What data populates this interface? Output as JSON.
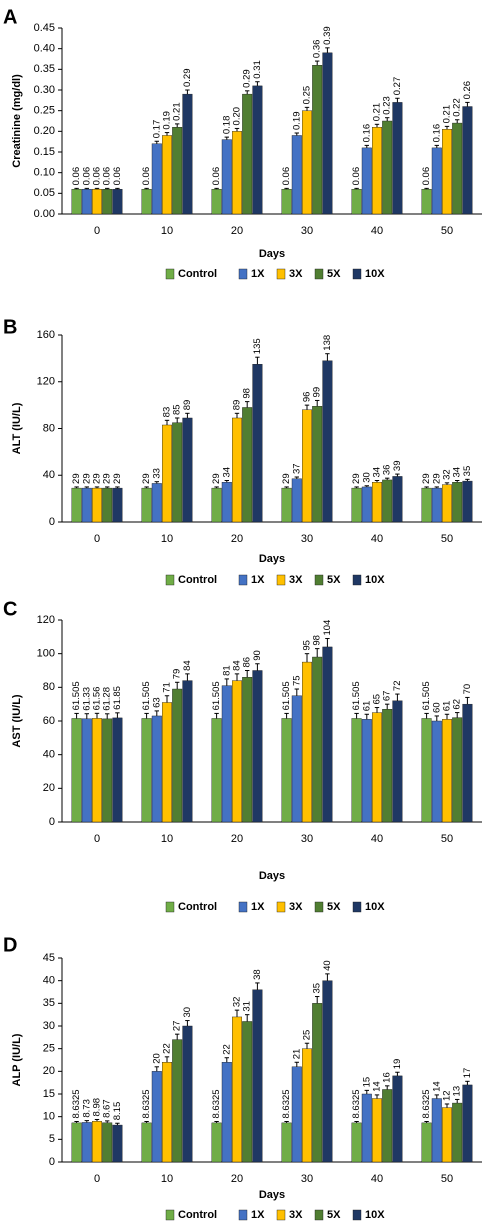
{
  "chart_data": [
    {
      "panel": "A",
      "type": "bar",
      "xlabel": "Days",
      "ylabel": "Creatinine (mg/dl)",
      "categories": [
        "0",
        "10",
        "20",
        "30",
        "40",
        "50"
      ],
      "ylim": [
        0,
        0.45
      ],
      "yticks": [
        "0.00",
        "0.05",
        "0.10",
        "0.15",
        "0.20",
        "0.25",
        "0.30",
        "0.35",
        "0.40",
        "0.45"
      ],
      "grid": false,
      "legend": "bottom",
      "series": [
        {
          "name": "Control",
          "color": "#70ad47",
          "values": [
            0.06,
            0.06,
            0.06,
            0.06,
            0.06,
            0.06
          ],
          "labels": [
            "0.06",
            "0.06",
            "0.06",
            "0.06",
            "0.06",
            "0.06"
          ],
          "errors": [
            0.002,
            0.002,
            0.002,
            0.002,
            0.002,
            0.002
          ]
        },
        {
          "name": "1X",
          "color": "#4472c4",
          "values": [
            0.06,
            0.17,
            0.18,
            0.19,
            0.16,
            0.16
          ],
          "labels": [
            "0.06",
            "0.17",
            "0.18",
            "0.19",
            "0.16",
            "0.16"
          ],
          "errors": [
            0.002,
            0.006,
            0.006,
            0.006,
            0.006,
            0.006
          ]
        },
        {
          "name": "3X",
          "color": "#ffc000",
          "values": [
            0.06,
            0.19,
            0.2,
            0.25,
            0.21,
            0.205
          ],
          "labels": [
            "0.06",
            "0.19",
            "0.20",
            "0.25",
            "0.21",
            "0.21"
          ],
          "errors": [
            0.002,
            0.007,
            0.007,
            0.008,
            0.007,
            0.007
          ]
        },
        {
          "name": "5X",
          "color": "#507e32",
          "values": [
            0.06,
            0.21,
            0.29,
            0.36,
            0.225,
            0.22
          ],
          "labels": [
            "0.06",
            "0.21",
            "0.29",
            "0.36",
            "0.23",
            "0.22"
          ],
          "errors": [
            0.002,
            0.008,
            0.008,
            0.01,
            0.008,
            0.008
          ]
        },
        {
          "name": "10X",
          "color": "#1f3864",
          "values": [
            0.06,
            0.29,
            0.31,
            0.39,
            0.27,
            0.26
          ],
          "labels": [
            "0.06",
            "0.29",
            "0.31",
            "0.39",
            "0.27",
            "0.26"
          ],
          "errors": [
            0.002,
            0.01,
            0.01,
            0.012,
            0.01,
            0.01
          ]
        }
      ]
    },
    {
      "panel": "B",
      "type": "bar",
      "xlabel": "Days",
      "ylabel": "ALT (IU/L)",
      "categories": [
        "0",
        "10",
        "20",
        "30",
        "40",
        "50"
      ],
      "ylim": [
        0,
        160
      ],
      "yticks": [
        "0",
        "40",
        "80",
        "120",
        "160"
      ],
      "grid": false,
      "legend": "bottom",
      "series": [
        {
          "name": "Control",
          "color": "#70ad47",
          "values": [
            29,
            29,
            29,
            29,
            29,
            29
          ],
          "labels": [
            "29",
            "29",
            "29",
            "29",
            "29",
            "29"
          ],
          "errors": [
            1,
            1,
            1,
            1,
            1,
            1
          ]
        },
        {
          "name": "1X",
          "color": "#4472c4",
          "values": [
            29,
            33,
            34,
            37,
            30,
            29
          ],
          "labels": [
            "29",
            "33",
            "34",
            "37",
            "30",
            "29"
          ],
          "errors": [
            1,
            1.5,
            1.5,
            1.5,
            1,
            1
          ]
        },
        {
          "name": "3X",
          "color": "#ffc000",
          "values": [
            29,
            83,
            89,
            96,
            34,
            32
          ],
          "labels": [
            "29",
            "83",
            "89",
            "96",
            "34",
            "32"
          ],
          "errors": [
            1,
            4,
            4,
            4,
            1.5,
            1.5
          ]
        },
        {
          "name": "5X",
          "color": "#507e32",
          "values": [
            29,
            85,
            98,
            99,
            36,
            34
          ],
          "labels": [
            "29",
            "85",
            "98",
            "99",
            "36",
            "34"
          ],
          "errors": [
            1,
            4,
            5,
            5,
            1.5,
            1.5
          ]
        },
        {
          "name": "10X",
          "color": "#1f3864",
          "values": [
            29,
            89,
            135,
            138,
            39,
            35
          ],
          "labels": [
            "29",
            "89",
            "135",
            "138",
            "39",
            "35"
          ],
          "errors": [
            1,
            4,
            6,
            6,
            2,
            1.5
          ]
        }
      ]
    },
    {
      "panel": "C",
      "type": "bar",
      "xlabel": "Days",
      "ylabel": "AST (IU/L)",
      "categories": [
        "0",
        "10",
        "20",
        "30",
        "40",
        "50"
      ],
      "ylim": [
        0,
        120
      ],
      "yticks": [
        "0",
        "20",
        "40",
        "60",
        "80",
        "100",
        "120"
      ],
      "grid": false,
      "legend": "bottom",
      "series": [
        {
          "name": "Control",
          "color": "#70ad47",
          "values": [
            61.505,
            61.505,
            61.505,
            61.505,
            61.505,
            61.505
          ],
          "labels": [
            "61.505",
            "61.505",
            "61.505",
            "61.505",
            "61.505",
            "61.505"
          ],
          "errors": [
            3,
            3,
            3,
            3,
            3,
            3
          ]
        },
        {
          "name": "1X",
          "color": "#4472c4",
          "values": [
            61.33,
            63,
            81,
            75,
            61,
            60
          ],
          "labels": [
            "61.33",
            "63",
            "81",
            "75",
            "61",
            "60"
          ],
          "errors": [
            3,
            3,
            4,
            4,
            3,
            3
          ]
        },
        {
          "name": "3X",
          "color": "#ffc000",
          "values": [
            61.56,
            71,
            84,
            95,
            65,
            61
          ],
          "labels": [
            "61.56",
            "71",
            "84",
            "95",
            "65",
            "61"
          ],
          "errors": [
            3,
            4,
            4,
            5,
            3,
            3
          ]
        },
        {
          "name": "5X",
          "color": "#507e32",
          "values": [
            61.28,
            79,
            86,
            98,
            67,
            62
          ],
          "labels": [
            "61.28",
            "79",
            "86",
            "98",
            "67",
            "62"
          ],
          "errors": [
            3,
            4,
            4,
            5,
            3,
            3
          ]
        },
        {
          "name": "10X",
          "color": "#1f3864",
          "values": [
            61.85,
            84,
            90,
            104,
            72,
            70
          ],
          "labels": [
            "61.85",
            "84",
            "90",
            "104",
            "72",
            "70"
          ],
          "errors": [
            3,
            4,
            4,
            5,
            4,
            4
          ]
        }
      ]
    },
    {
      "panel": "D",
      "type": "bar",
      "xlabel": "Days",
      "ylabel": "ALP (IU/L)",
      "categories": [
        "0",
        "10",
        "20",
        "30",
        "40",
        "50"
      ],
      "ylim": [
        0,
        45
      ],
      "yticks": [
        "0",
        "5",
        "10",
        "15",
        "20",
        "25",
        "30",
        "35",
        "40",
        "45"
      ],
      "grid": false,
      "legend": "bottom",
      "series": [
        {
          "name": "Control",
          "color": "#70ad47",
          "values": [
            8.6325,
            8.6325,
            8.6325,
            8.6325,
            8.6325,
            8.6325
          ],
          "labels": [
            "8.6325",
            "8.6325",
            "8.6325",
            "8.6325",
            "8.6325",
            "8.6325"
          ],
          "errors": [
            0.3,
            0.3,
            0.3,
            0.3,
            0.3,
            0.3
          ]
        },
        {
          "name": "1X",
          "color": "#4472c4",
          "values": [
            8.73,
            20,
            22,
            21,
            15,
            14
          ],
          "labels": [
            "8.73",
            "20",
            "22",
            "21",
            "15",
            "14"
          ],
          "errors": [
            0.4,
            1,
            1,
            1,
            0.8,
            0.8
          ]
        },
        {
          "name": "3X",
          "color": "#ffc000",
          "values": [
            8.98,
            22,
            32,
            25,
            14,
            12
          ],
          "labels": [
            "8.98",
            "22",
            "32",
            "25",
            "14",
            "12"
          ],
          "errors": [
            0.4,
            1.2,
            1.5,
            1.2,
            0.8,
            0.8
          ]
        },
        {
          "name": "5X",
          "color": "#507e32",
          "values": [
            8.67,
            27,
            31,
            35,
            16,
            13
          ],
          "labels": [
            "8.67",
            "27",
            "31",
            "35",
            "16",
            "13"
          ],
          "errors": [
            0.4,
            1.2,
            1.5,
            1.5,
            0.8,
            0.8
          ]
        },
        {
          "name": "10X",
          "color": "#1f3864",
          "values": [
            8.15,
            30,
            38,
            40,
            19,
            17
          ],
          "labels": [
            "8.15",
            "30",
            "38",
            "40",
            "19",
            "17"
          ],
          "errors": [
            0.4,
            1.2,
            1.5,
            1.5,
            0.8,
            0.8
          ]
        }
      ]
    }
  ]
}
